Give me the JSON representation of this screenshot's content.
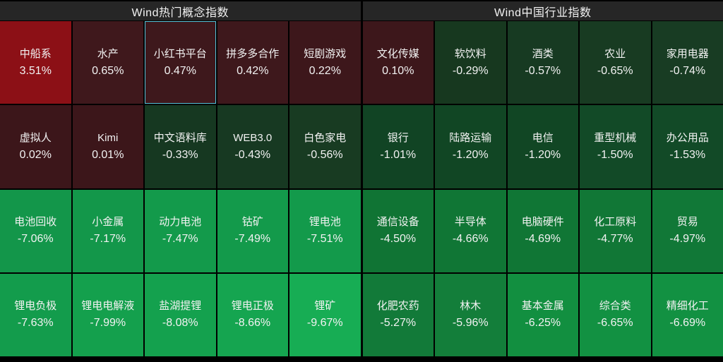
{
  "theme": {
    "bg": "#000000",
    "header_bg": "#262626",
    "text": "#f2f2f2",
    "selected_border": "#55c1d8",
    "up_color": "#8c1016",
    "flat_up_color": "#3e181c",
    "down_dark_color": "#163820",
    "down_bright_color": "#17ad54"
  },
  "chart_data": {
    "type": "heatmap",
    "layout": {
      "rows": 4,
      "cols": 5,
      "sections": 2,
      "legend": "none",
      "grid": "tiled"
    },
    "sections": [
      {
        "title": "Wind热门概念指数",
        "tiles": [
          {
            "name": "中船系",
            "value": "3.51%",
            "pct": 3.51,
            "color": "#8c1016",
            "selected": false
          },
          {
            "name": "水产",
            "value": "0.65%",
            "pct": 0.65,
            "color": "#3f181c",
            "selected": false
          },
          {
            "name": "小红书平台",
            "value": "0.47%",
            "pct": 0.47,
            "color": "#3e181c",
            "selected": true
          },
          {
            "name": "拼多多合作",
            "value": "0.42%",
            "pct": 0.42,
            "color": "#3e181c",
            "selected": false
          },
          {
            "name": "短剧游戏",
            "value": "0.22%",
            "pct": 0.22,
            "color": "#3d171b",
            "selected": false
          },
          {
            "name": "虚拟人",
            "value": "0.02%",
            "pct": 0.02,
            "color": "#3c161a",
            "selected": false
          },
          {
            "name": "Kimi",
            "value": "0.01%",
            "pct": 0.01,
            "color": "#3c161a",
            "selected": false
          },
          {
            "name": "中文语料库",
            "value": "-0.33%",
            "pct": -0.33,
            "color": "#163821",
            "selected": false
          },
          {
            "name": "WEB3.0",
            "value": "-0.43%",
            "pct": -0.43,
            "color": "#173922",
            "selected": false
          },
          {
            "name": "白色家电",
            "value": "-0.56%",
            "pct": -0.56,
            "color": "#183b22",
            "selected": false
          },
          {
            "name": "电池回收",
            "value": "-7.06%",
            "pct": -7.06,
            "color": "#13964a",
            "selected": false
          },
          {
            "name": "小金属",
            "value": "-7.17%",
            "pct": -7.17,
            "color": "#13974a",
            "selected": false
          },
          {
            "name": "动力电池",
            "value": "-7.47%",
            "pct": -7.47,
            "color": "#139a4b",
            "selected": false
          },
          {
            "name": "钴矿",
            "value": "-7.49%",
            "pct": -7.49,
            "color": "#139a4b",
            "selected": false
          },
          {
            "name": "锂电池",
            "value": "-7.51%",
            "pct": -7.51,
            "color": "#139a4b",
            "selected": false
          },
          {
            "name": "锂电负极",
            "value": "-7.63%",
            "pct": -7.63,
            "color": "#139c4c",
            "selected": false
          },
          {
            "name": "锂电电解液",
            "value": "-7.99%",
            "pct": -7.99,
            "color": "#14a04d",
            "selected": false
          },
          {
            "name": "盐湖提锂",
            "value": "-8.08%",
            "pct": -8.08,
            "color": "#14a14e",
            "selected": false
          },
          {
            "name": "锂电正极",
            "value": "-8.66%",
            "pct": -8.66,
            "color": "#15a550",
            "selected": false
          },
          {
            "name": "锂矿",
            "value": "-9.67%",
            "pct": -9.67,
            "color": "#17ad54",
            "selected": false
          }
        ]
      },
      {
        "title": "Wind中国行业指数",
        "tiles": [
          {
            "name": "文化传媒",
            "value": "0.10%",
            "pct": 0.1,
            "color": "#3d171b",
            "selected": false
          },
          {
            "name": "软饮料",
            "value": "-0.29%",
            "pct": -0.29,
            "color": "#17381f",
            "selected": false
          },
          {
            "name": "酒类",
            "value": "-0.57%",
            "pct": -0.57,
            "color": "#173a22",
            "selected": false
          },
          {
            "name": "农业",
            "value": "-0.65%",
            "pct": -0.65,
            "color": "#183b22",
            "selected": false
          },
          {
            "name": "家用电器",
            "value": "-0.74%",
            "pct": -0.74,
            "color": "#183c23",
            "selected": false
          },
          {
            "name": "银行",
            "value": "-1.01%",
            "pct": -1.01,
            "color": "#114424",
            "selected": false
          },
          {
            "name": "陆路运输",
            "value": "-1.20%",
            "pct": -1.2,
            "color": "#114624",
            "selected": false
          },
          {
            "name": "电信",
            "value": "-1.20%",
            "pct": -1.2,
            "color": "#114624",
            "selected": false
          },
          {
            "name": "重型机械",
            "value": "-1.50%",
            "pct": -1.5,
            "color": "#124a27",
            "selected": false
          },
          {
            "name": "办公用品",
            "value": "-1.53%",
            "pct": -1.53,
            "color": "#124a27",
            "selected": false
          },
          {
            "name": "通信设备",
            "value": "-4.50%",
            "pct": -4.5,
            "color": "#107434",
            "selected": false
          },
          {
            "name": "半导体",
            "value": "-4.66%",
            "pct": -4.66,
            "color": "#107635",
            "selected": false
          },
          {
            "name": "电脑硬件",
            "value": "-4.69%",
            "pct": -4.69,
            "color": "#107635",
            "selected": false
          },
          {
            "name": "化工原料",
            "value": "-4.77%",
            "pct": -4.77,
            "color": "#117736",
            "selected": false
          },
          {
            "name": "贸易",
            "value": "-4.97%",
            "pct": -4.97,
            "color": "#117837",
            "selected": false
          },
          {
            "name": "化肥农药",
            "value": "-5.27%",
            "pct": -5.27,
            "color": "#127a39",
            "selected": false
          },
          {
            "name": "林木",
            "value": "-5.96%",
            "pct": -5.96,
            "color": "#137e3a",
            "selected": false
          },
          {
            "name": "基本金属",
            "value": "-6.25%",
            "pct": -6.25,
            "color": "#128f40",
            "selected": false
          },
          {
            "name": "综合类",
            "value": "-6.65%",
            "pct": -6.65,
            "color": "#129142",
            "selected": false
          },
          {
            "name": "精细化工",
            "value": "-6.69%",
            "pct": -6.69,
            "color": "#129142",
            "selected": false
          }
        ]
      }
    ]
  }
}
